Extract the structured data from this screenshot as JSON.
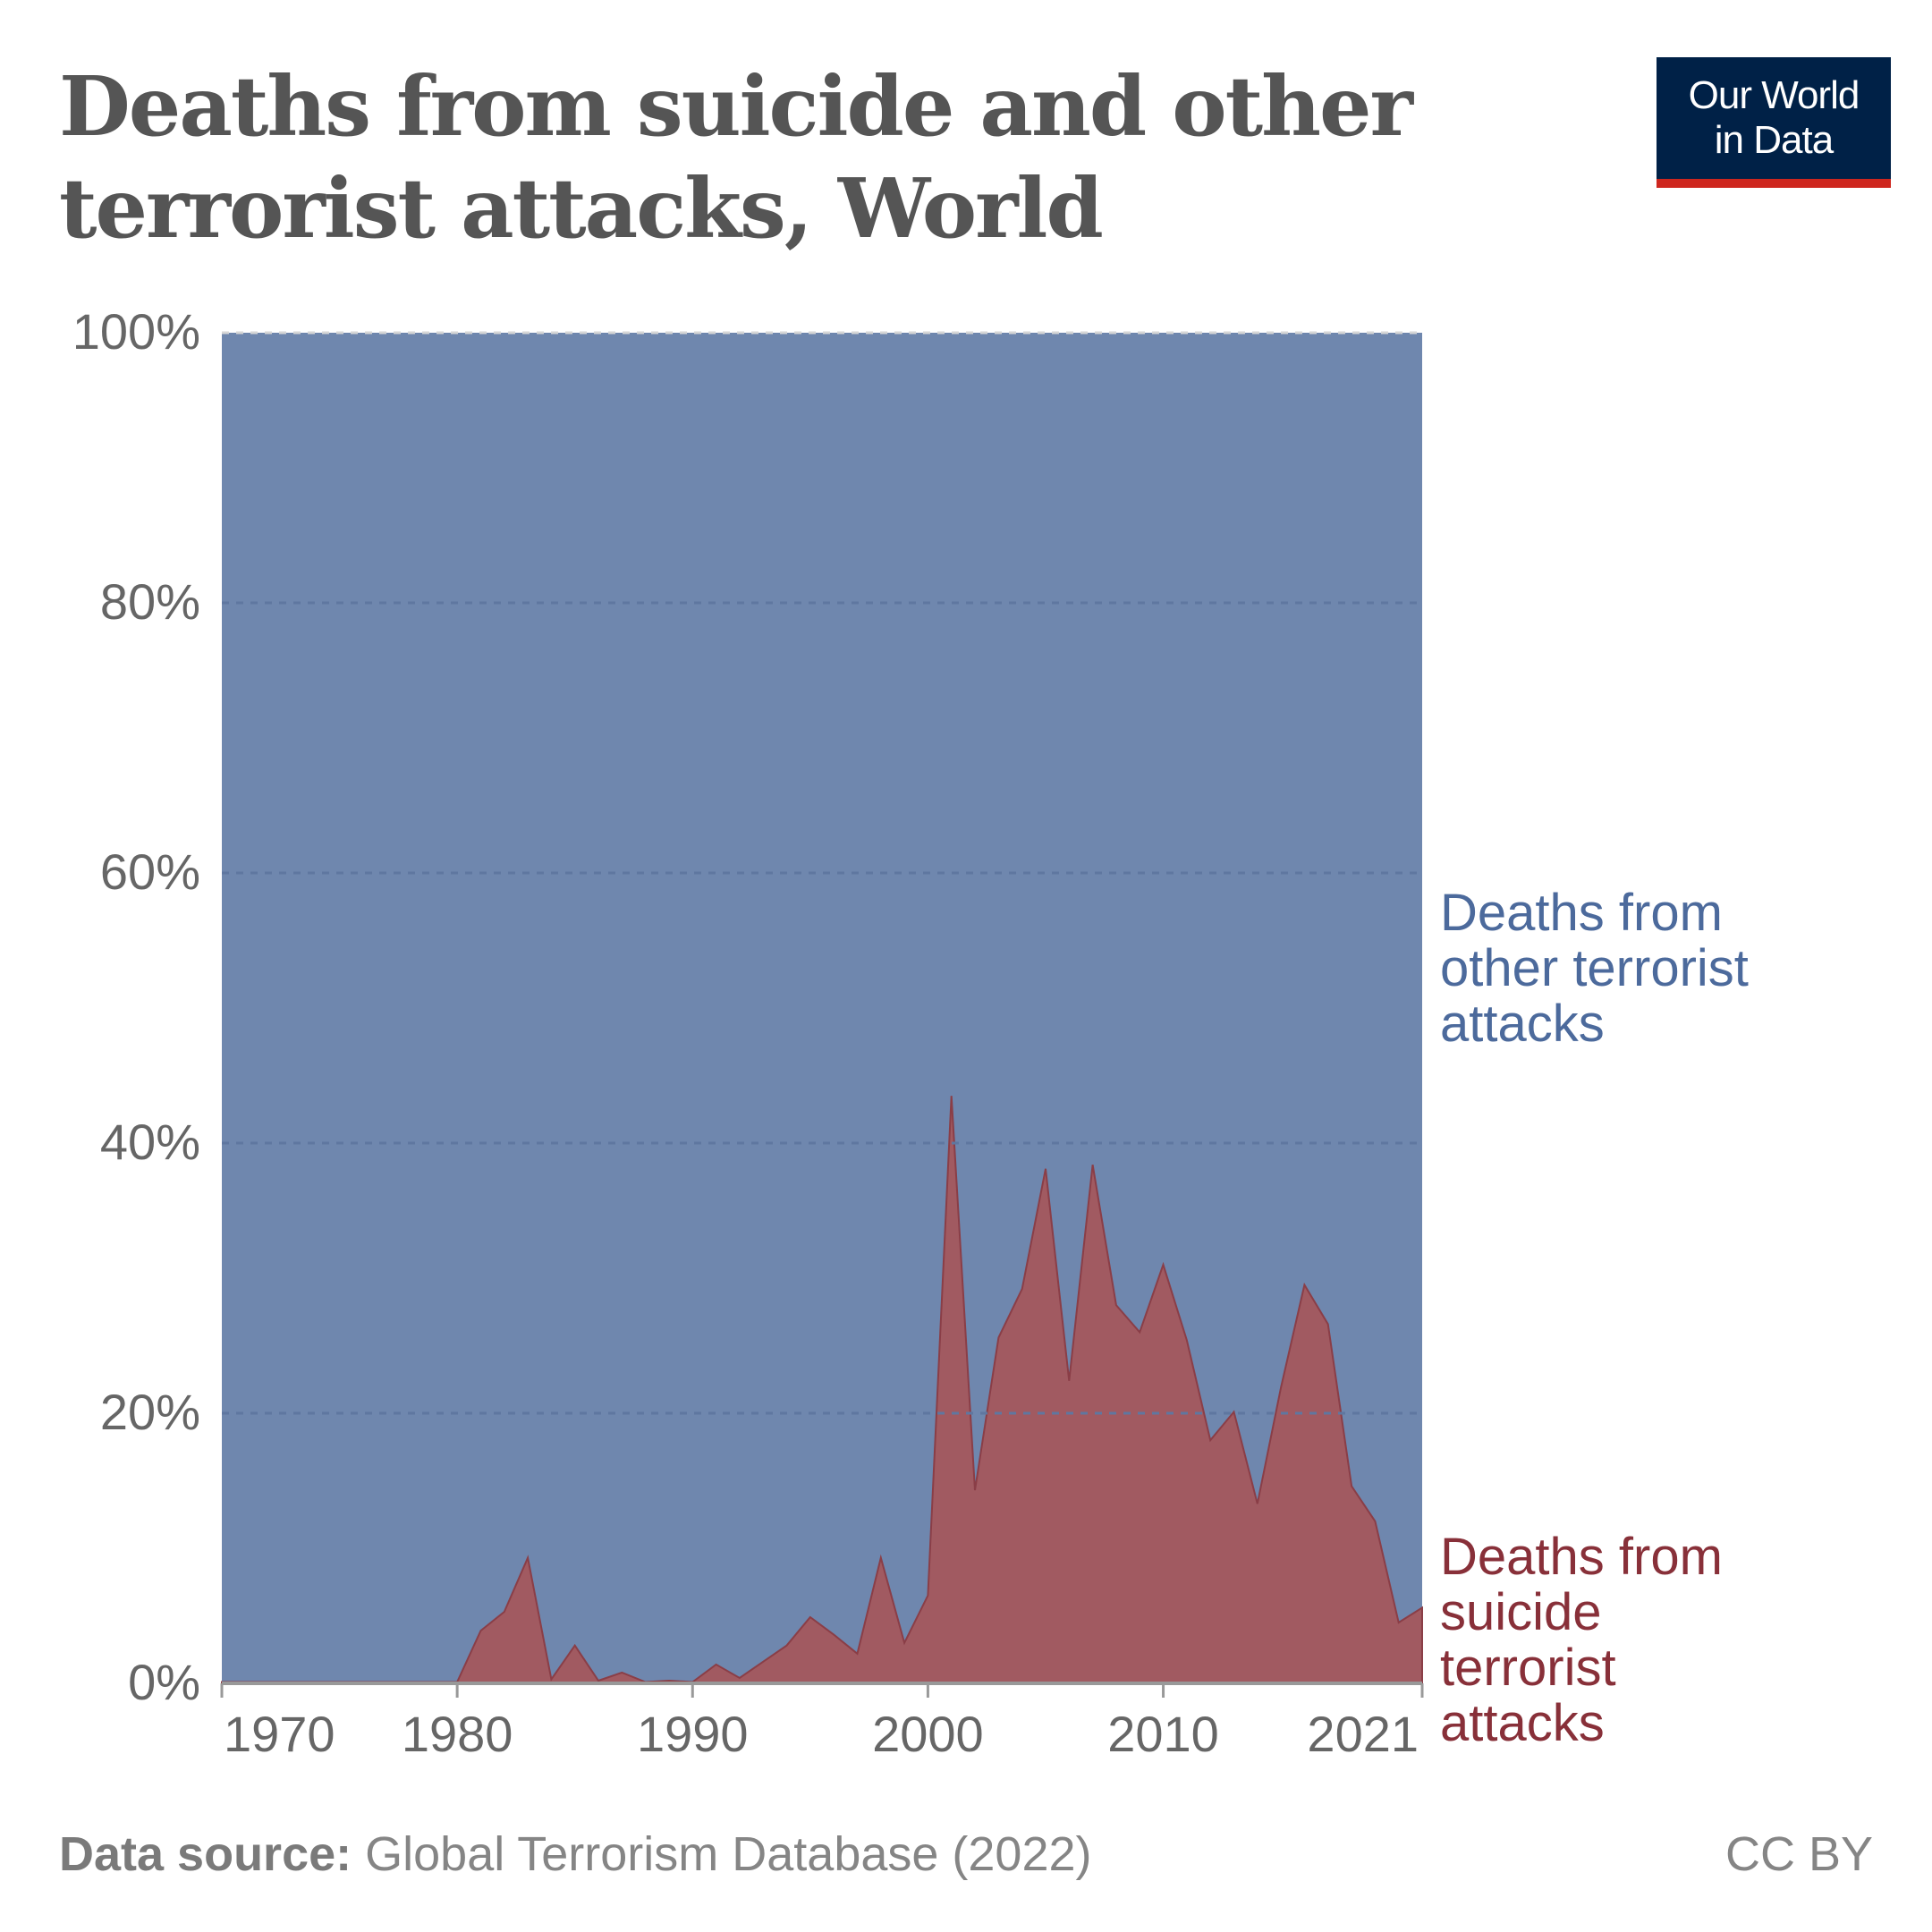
{
  "header": {
    "title_line1": "Deaths from suicide and other",
    "title_line2": "terrorist attacks, World"
  },
  "logo": {
    "line1": "Our World",
    "line2": "in Data"
  },
  "footer": {
    "source_label": "Data source:",
    "source_text": "Global Terrorism Database (2022)",
    "license": "CC BY"
  },
  "colors": {
    "other": "#6f87ae",
    "suicide": "#a15a61",
    "other_text": "#4c6a9c",
    "suicide_text": "#883039"
  },
  "chart_data": {
    "type": "area",
    "stacked": true,
    "normalized": true,
    "title": "Deaths from suicide and other terrorist attacks, World",
    "ylim": [
      0,
      100
    ],
    "xlim": [
      1970,
      2021
    ],
    "y_ticks": [
      {
        "value": 0,
        "label": "0%"
      },
      {
        "value": 20,
        "label": "20%"
      },
      {
        "value": 40,
        "label": "40%"
      },
      {
        "value": 60,
        "label": "60%"
      },
      {
        "value": 80,
        "label": "80%"
      },
      {
        "value": 100,
        "label": "100%"
      }
    ],
    "x_ticks": [
      {
        "value": 1970,
        "label": "1970"
      },
      {
        "value": 1980,
        "label": "1980"
      },
      {
        "value": 1990,
        "label": "1990"
      },
      {
        "value": 2000,
        "label": "2000"
      },
      {
        "value": 2010,
        "label": "2010"
      },
      {
        "value": 2021,
        "label": "2021"
      }
    ],
    "grid": "horizontal dashed",
    "legend": "labels at right end of series",
    "series": [
      {
        "name": "Deaths from suicide terrorist attacks",
        "label_lines": [
          "Deaths from",
          "suicide",
          "terrorist",
          "attacks"
        ],
        "color": "#a15a61",
        "text_color": "#883039",
        "x": [
          1970,
          1971,
          1972,
          1973,
          1974,
          1975,
          1976,
          1977,
          1978,
          1979,
          1980,
          1981,
          1982,
          1983,
          1984,
          1985,
          1986,
          1987,
          1988,
          1989,
          1990,
          1991,
          1992,
          1993,
          1994,
          1995,
          1996,
          1997,
          1998,
          1999,
          2000,
          2001,
          2002,
          2003,
          2004,
          2005,
          2006,
          2007,
          2008,
          2009,
          2010,
          2011,
          2012,
          2013,
          2014,
          2015,
          2016,
          2017,
          2018,
          2019,
          2020,
          2021
        ],
        "values": [
          0.1,
          0.1,
          0.1,
          0.1,
          0.1,
          0.1,
          0.1,
          0.1,
          0.1,
          0.1,
          0.1,
          3.9,
          5.3,
          9.3,
          0.3,
          2.8,
          0.2,
          0.8,
          0.1,
          0.2,
          0.1,
          1.4,
          0.4,
          1.6,
          2.8,
          4.9,
          3.6,
          2.2,
          9.3,
          3.0,
          6.5,
          43.5,
          14.3,
          25.6,
          29.2,
          38.1,
          22.4,
          38.4,
          28.0,
          26.0,
          31.0,
          25.4,
          18.0,
          20.1,
          13.3,
          21.9,
          29.5,
          26.6,
          14.6,
          12.0,
          4.5,
          5.6
        ]
      },
      {
        "name": "Deaths from other terrorist attacks",
        "label_lines": [
          "Deaths from",
          "other terrorist",
          "attacks"
        ],
        "color": "#6f87ae",
        "text_color": "#4c6a9c",
        "x": [
          1970,
          2021
        ],
        "values": "remainder to 100%"
      }
    ]
  }
}
